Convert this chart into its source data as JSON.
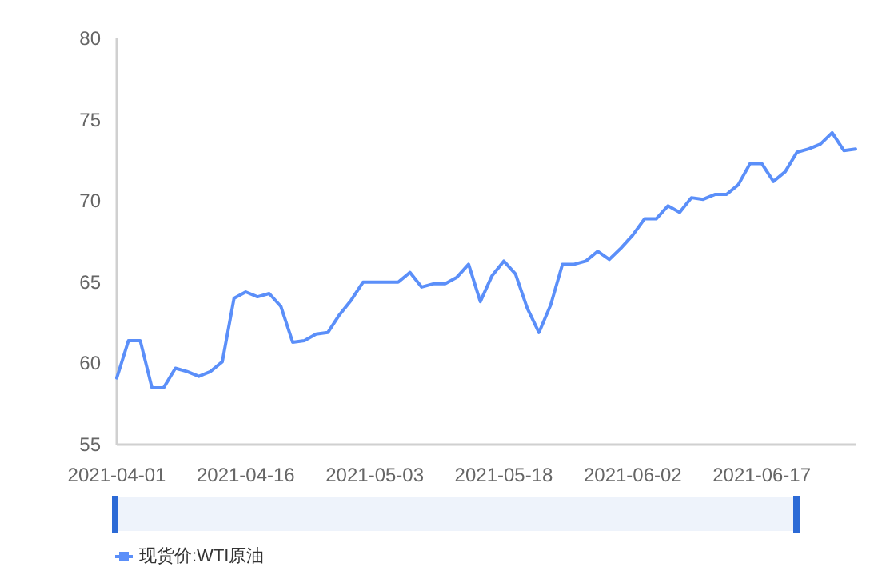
{
  "chart_data": {
    "type": "line",
    "categories": [
      "2021-04-01",
      null,
      null,
      null,
      null,
      null,
      null,
      null,
      null,
      null,
      null,
      "2021-04-16",
      null,
      null,
      null,
      null,
      null,
      null,
      null,
      null,
      null,
      null,
      "2021-05-03",
      null,
      null,
      null,
      null,
      null,
      null,
      null,
      null,
      null,
      null,
      "2021-05-18",
      null,
      null,
      null,
      null,
      null,
      null,
      null,
      null,
      null,
      null,
      "2021-06-02",
      null,
      null,
      null,
      null,
      null,
      null,
      null,
      null,
      null,
      null,
      "2021-06-17",
      null,
      null,
      null,
      null,
      null,
      null,
      null,
      null
    ],
    "series": [
      {
        "name": "现货价:WTI原油",
        "color": "#5b8ff9",
        "values": [
          59.1,
          61.4,
          61.4,
          58.5,
          58.5,
          59.7,
          59.5,
          59.2,
          59.5,
          60.1,
          64.0,
          64.4,
          64.1,
          64.3,
          63.5,
          61.3,
          61.4,
          61.8,
          61.9,
          63.0,
          63.9,
          65.0,
          65.0,
          65.0,
          65.0,
          65.6,
          64.7,
          64.9,
          64.9,
          65.3,
          66.1,
          63.8,
          65.4,
          66.3,
          65.5,
          63.4,
          61.9,
          63.6,
          66.1,
          66.1,
          66.3,
          66.9,
          66.4,
          67.1,
          67.9,
          68.9,
          68.9,
          69.7,
          69.3,
          70.2,
          70.1,
          70.4,
          70.4,
          71.0,
          72.3,
          72.3,
          71.2,
          71.8,
          73.0,
          73.2,
          73.5,
          74.2,
          73.1,
          73.2
        ]
      }
    ],
    "ylim": [
      55,
      80
    ],
    "yticks": [
      55,
      60,
      65,
      70,
      75,
      80
    ],
    "grid": false,
    "legend": "bottom left",
    "marker": "none",
    "line_style": "solid"
  }
}
